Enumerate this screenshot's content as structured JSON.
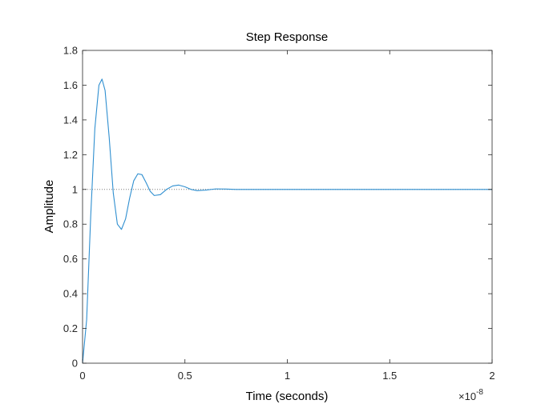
{
  "chart_data": {
    "type": "line",
    "title": "Step Response",
    "xlabel": "Time (seconds)",
    "ylabel": "Amplitude",
    "x_exponent_label": "×10",
    "x_exponent_power": "-8",
    "xlim": [
      0,
      2
    ],
    "ylim": [
      0,
      1.8
    ],
    "x_ticks": [
      0,
      0.5,
      1,
      1.5,
      2
    ],
    "x_tick_labels": [
      "0",
      "0.5",
      "1",
      "1.5",
      "2"
    ],
    "y_ticks": [
      0,
      0.2,
      0.4,
      0.6,
      0.8,
      1,
      1.2,
      1.4,
      1.6,
      1.8
    ],
    "y_tick_labels": [
      "0",
      "0.2",
      "0.4",
      "0.6",
      "0.8",
      "1",
      "1.2",
      "1.4",
      "1.6",
      "1.8"
    ],
    "grid": false,
    "reference_line": {
      "y": 1,
      "style": "dotted",
      "color": "#7f7f7f"
    },
    "series": [
      {
        "color": "#2f8fd0",
        "x": [
          0,
          0.02,
          0.04,
          0.06,
          0.08,
          0.095,
          0.11,
          0.13,
          0.15,
          0.17,
          0.19,
          0.21,
          0.23,
          0.25,
          0.27,
          0.29,
          0.31,
          0.33,
          0.35,
          0.38,
          0.41,
          0.44,
          0.47,
          0.5,
          0.53,
          0.56,
          0.6,
          0.65,
          0.7,
          0.75,
          0.8,
          0.9,
          1.0,
          1.5,
          2.0
        ],
        "y": [
          0,
          0.25,
          0.85,
          1.35,
          1.6,
          1.635,
          1.57,
          1.3,
          0.98,
          0.8,
          0.77,
          0.83,
          0.95,
          1.05,
          1.09,
          1.085,
          1.04,
          0.99,
          0.965,
          0.97,
          1.0,
          1.02,
          1.025,
          1.015,
          1.0,
          0.993,
          0.996,
          1.003,
          1.002,
          1.0,
          1.0,
          1.0,
          1.0,
          1.0,
          1.0
        ]
      }
    ]
  }
}
